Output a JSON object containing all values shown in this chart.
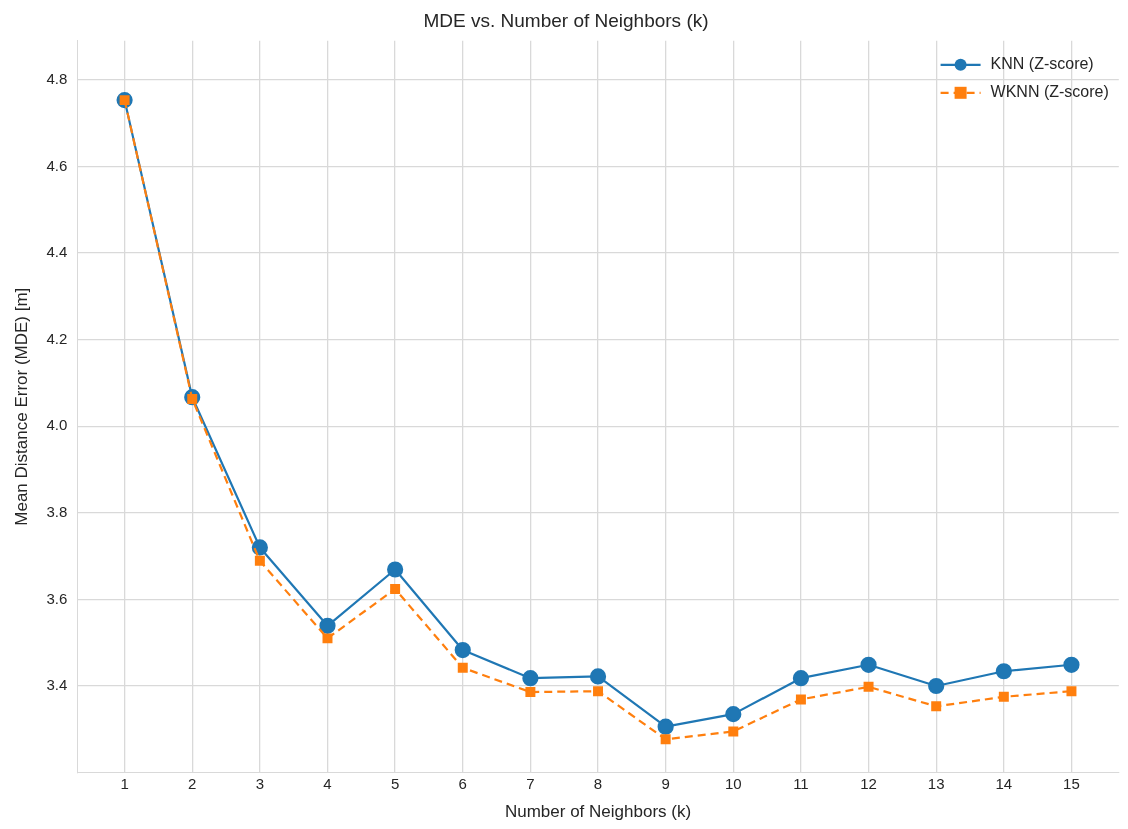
{
  "chart_data": {
    "type": "line",
    "title": "MDE vs. Number of Neighbors (k)",
    "xlabel": "Number of Neighbors (k)",
    "ylabel": "Mean Distance Error (MDE) [m]",
    "x": [
      1,
      2,
      3,
      4,
      5,
      6,
      7,
      8,
      9,
      10,
      11,
      12,
      13,
      14,
      15
    ],
    "series": [
      {
        "name": "KNN (Z-score)",
        "color": "#1f77b4",
        "marker": "circle",
        "line_style": "solid",
        "values": [
          4.753,
          4.067,
          3.72,
          3.539,
          3.669,
          3.483,
          3.418,
          3.422,
          3.306,
          3.335,
          3.418,
          3.449,
          3.4,
          3.434,
          3.449
        ]
      },
      {
        "name": "WKNN (Z-score)",
        "color": "#ff7f0e",
        "marker": "square",
        "line_style": "dashed",
        "values": [
          4.753,
          4.063,
          3.689,
          3.51,
          3.624,
          3.442,
          3.386,
          3.388,
          3.277,
          3.295,
          3.369,
          3.398,
          3.353,
          3.375,
          3.388
        ]
      }
    ],
    "xlim": [
      0.3,
      15.7
    ],
    "xticks": [
      1,
      2,
      3,
      4,
      5,
      6,
      7,
      8,
      9,
      10,
      11,
      12,
      13,
      14,
      15
    ],
    "ylim": [
      3.2,
      4.89
    ],
    "yticks": [
      3.4,
      3.6,
      3.8,
      {
        "value": 4.0,
        "label": "4.0"
      },
      4.2,
      4.4,
      4.6,
      4.8
    ],
    "grid": true,
    "legend": "top right"
  }
}
